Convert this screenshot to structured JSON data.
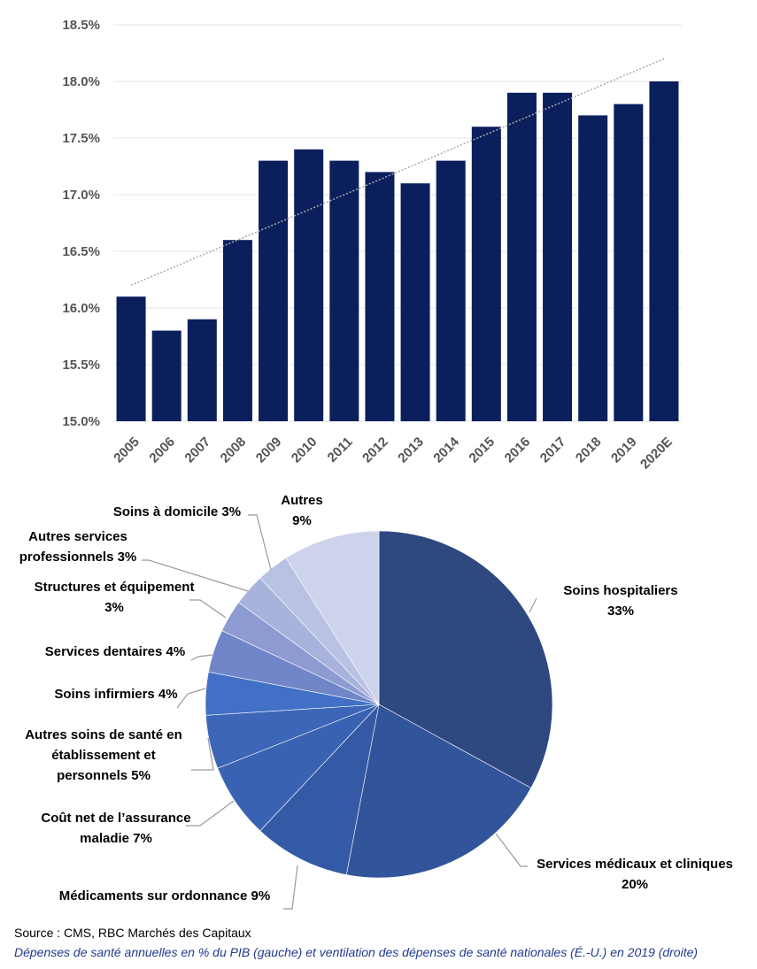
{
  "chart_data": [
    {
      "type": "bar",
      "categories": [
        "2005",
        "2006",
        "2007",
        "2008",
        "2009",
        "2010",
        "2011",
        "2012",
        "2013",
        "2014",
        "2015",
        "2016",
        "2017",
        "2018",
        "2019",
        "2020E"
      ],
      "values": [
        16.1,
        15.8,
        15.9,
        16.6,
        17.3,
        17.4,
        17.3,
        17.2,
        17.1,
        17.3,
        17.6,
        17.9,
        17.9,
        17.7,
        17.8,
        18.0
      ],
      "ylim": [
        15.0,
        18.5
      ],
      "yticks": [
        "15.0%",
        "15.5%",
        "16.0%",
        "16.5%",
        "17.0%",
        "17.5%",
        "18.0%",
        "18.5%"
      ],
      "ytick_values": [
        15.0,
        15.5,
        16.0,
        16.5,
        17.0,
        17.5,
        18.0,
        18.5
      ],
      "trendline": {
        "start": 16.2,
        "end": 18.2
      },
      "bar_color": "#0a1f5c",
      "trend_color": "#aaaaaa",
      "grid": true
    },
    {
      "type": "pie",
      "slices": [
        {
          "label": [
            "Soins hospitaliers",
            "33%"
          ],
          "value": 33,
          "color": "#2e4880"
        },
        {
          "label": [
            "Services médicaux et cliniques",
            "20%"
          ],
          "value": 20,
          "color": "#32549a"
        },
        {
          "label": [
            "Médicaments sur  ordonnance 9%"
          ],
          "value": 9,
          "color": "#355aa5"
        },
        {
          "label": [
            "Coût net de l’assurance",
            "maladie 7%"
          ],
          "value": 7,
          "color": "#3a62b2"
        },
        {
          "label": [
            "Autres soins de santé en",
            "établissement et",
            "personnels 5%"
          ],
          "value": 5,
          "color": "#3d66b8"
        },
        {
          "label": [
            "Soins infirmiers 4%"
          ],
          "value": 4,
          "color": "#4170c6"
        },
        {
          "label": [
            "Services dentaires 4%"
          ],
          "value": 4,
          "color": "#7086c8"
        },
        {
          "label": [
            "Structures et équipement",
            "3%"
          ],
          "value": 3,
          "color": "#8c9bd1"
        },
        {
          "label": [
            "Autres services",
            "professionnels 3%"
          ],
          "value": 3,
          "color": "#a8b3dc"
        },
        {
          "label": [
            "Soins à domicile 3%"
          ],
          "value": 3,
          "color": "#b9c2e3"
        },
        {
          "label": [
            "Autres",
            "9%"
          ],
          "value": 9,
          "color": "#cdd3ea"
        }
      ]
    }
  ],
  "source": "Source : CMS, RBC Marchés des Capitaux",
  "caption": "Dépenses de santé annuelles en % du PIB (gauche) et ventilation des dépenses de santé nationales (É.-U.) en 2019 (droite)"
}
